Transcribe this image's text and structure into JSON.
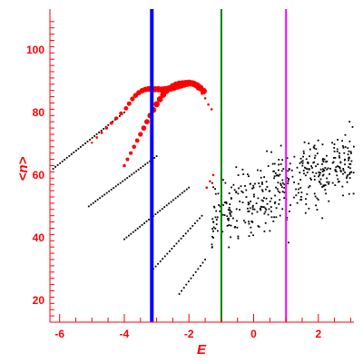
{
  "chart_data": {
    "type": "scatter",
    "xlabel": "E",
    "ylabel": "<n>",
    "xlim": [
      -6.3,
      3.1
    ],
    "ylim": [
      13,
      113
    ],
    "x_ticks": [
      -6,
      -4,
      -2,
      0,
      2
    ],
    "y_ticks": [
      20,
      40,
      60,
      80,
      100
    ],
    "x_tick_labels": [
      "-6",
      "-4",
      "-2",
      "0",
      "2"
    ],
    "y_tick_labels": [
      "20",
      "40",
      "60",
      "80",
      "100"
    ],
    "grid": false,
    "legend": "none",
    "axis_color": "#ff0000",
    "vlines": [
      {
        "x": -3.15,
        "color": "#0000ff"
      },
      {
        "x": -1.0,
        "color": "#008000"
      },
      {
        "x": 1.0,
        "color": "#ff00ff"
      }
    ],
    "series": [
      {
        "color": "#ff0000",
        "style": "growing-dots",
        "points": [
          [
            -5.0,
            70.3
          ],
          [
            -4.85,
            72.0
          ],
          [
            -4.7,
            73.5
          ],
          [
            -4.55,
            75.0
          ],
          [
            -4.4,
            76.6
          ],
          [
            -4.25,
            78.1
          ],
          [
            -4.1,
            79.7
          ],
          [
            -3.95,
            81.3
          ],
          [
            -3.85,
            82.8
          ],
          [
            -3.75,
            84.3
          ],
          [
            -3.65,
            85.4
          ],
          [
            -3.55,
            86.3
          ],
          [
            -3.45,
            86.9
          ],
          [
            -3.35,
            87.3
          ],
          [
            -3.25,
            87.5
          ],
          [
            -3.15,
            87.5
          ],
          [
            -3.05,
            87.4
          ],
          [
            -2.95,
            87.4
          ],
          [
            -2.85,
            87.3
          ],
          [
            -2.75,
            87.4
          ],
          [
            -2.65,
            87.5
          ],
          [
            -2.55,
            87.7
          ],
          [
            -2.45,
            88.0
          ],
          [
            -2.35,
            88.3
          ],
          [
            -2.25,
            88.6
          ],
          [
            -2.15,
            88.9
          ],
          [
            -2.05,
            89.2
          ],
          [
            -1.95,
            89.3
          ],
          [
            -1.85,
            89.1
          ],
          [
            -1.75,
            88.6
          ],
          [
            -1.65,
            87.8
          ],
          [
            -1.55,
            86.8
          ],
          [
            -4.0,
            63.0
          ],
          [
            -3.9,
            65.0
          ],
          [
            -3.8,
            67.0
          ],
          [
            -3.7,
            69.0
          ],
          [
            -3.6,
            71.0
          ],
          [
            -3.5,
            73.0
          ],
          [
            -3.4,
            75.0
          ],
          [
            -3.3,
            77.0
          ],
          [
            -3.2,
            79.0
          ],
          [
            -3.1,
            80.8
          ],
          [
            -3.0,
            82.6
          ],
          [
            -2.9,
            84.2
          ],
          [
            -2.8,
            85.6
          ],
          [
            -2.7,
            86.8
          ],
          [
            -2.6,
            87.7
          ],
          [
            -2.5,
            88.4
          ],
          [
            -2.4,
            88.9
          ],
          [
            -2.3,
            89.2
          ],
          [
            -2.2,
            89.3
          ],
          [
            -2.1,
            89.4
          ],
          [
            -2.0,
            89.5
          ],
          [
            -1.9,
            89.3
          ],
          [
            -1.8,
            88.8
          ],
          [
            -1.7,
            88.0
          ],
          [
            -1.6,
            86.0
          ],
          [
            -1.5,
            84.5
          ],
          [
            -1.4,
            82.5
          ],
          [
            -1.3,
            81.0
          ],
          [
            -1.45,
            56.0
          ],
          [
            -1.35,
            58.0
          ],
          [
            -1.25,
            60.0
          ]
        ]
      }
    ]
  }
}
